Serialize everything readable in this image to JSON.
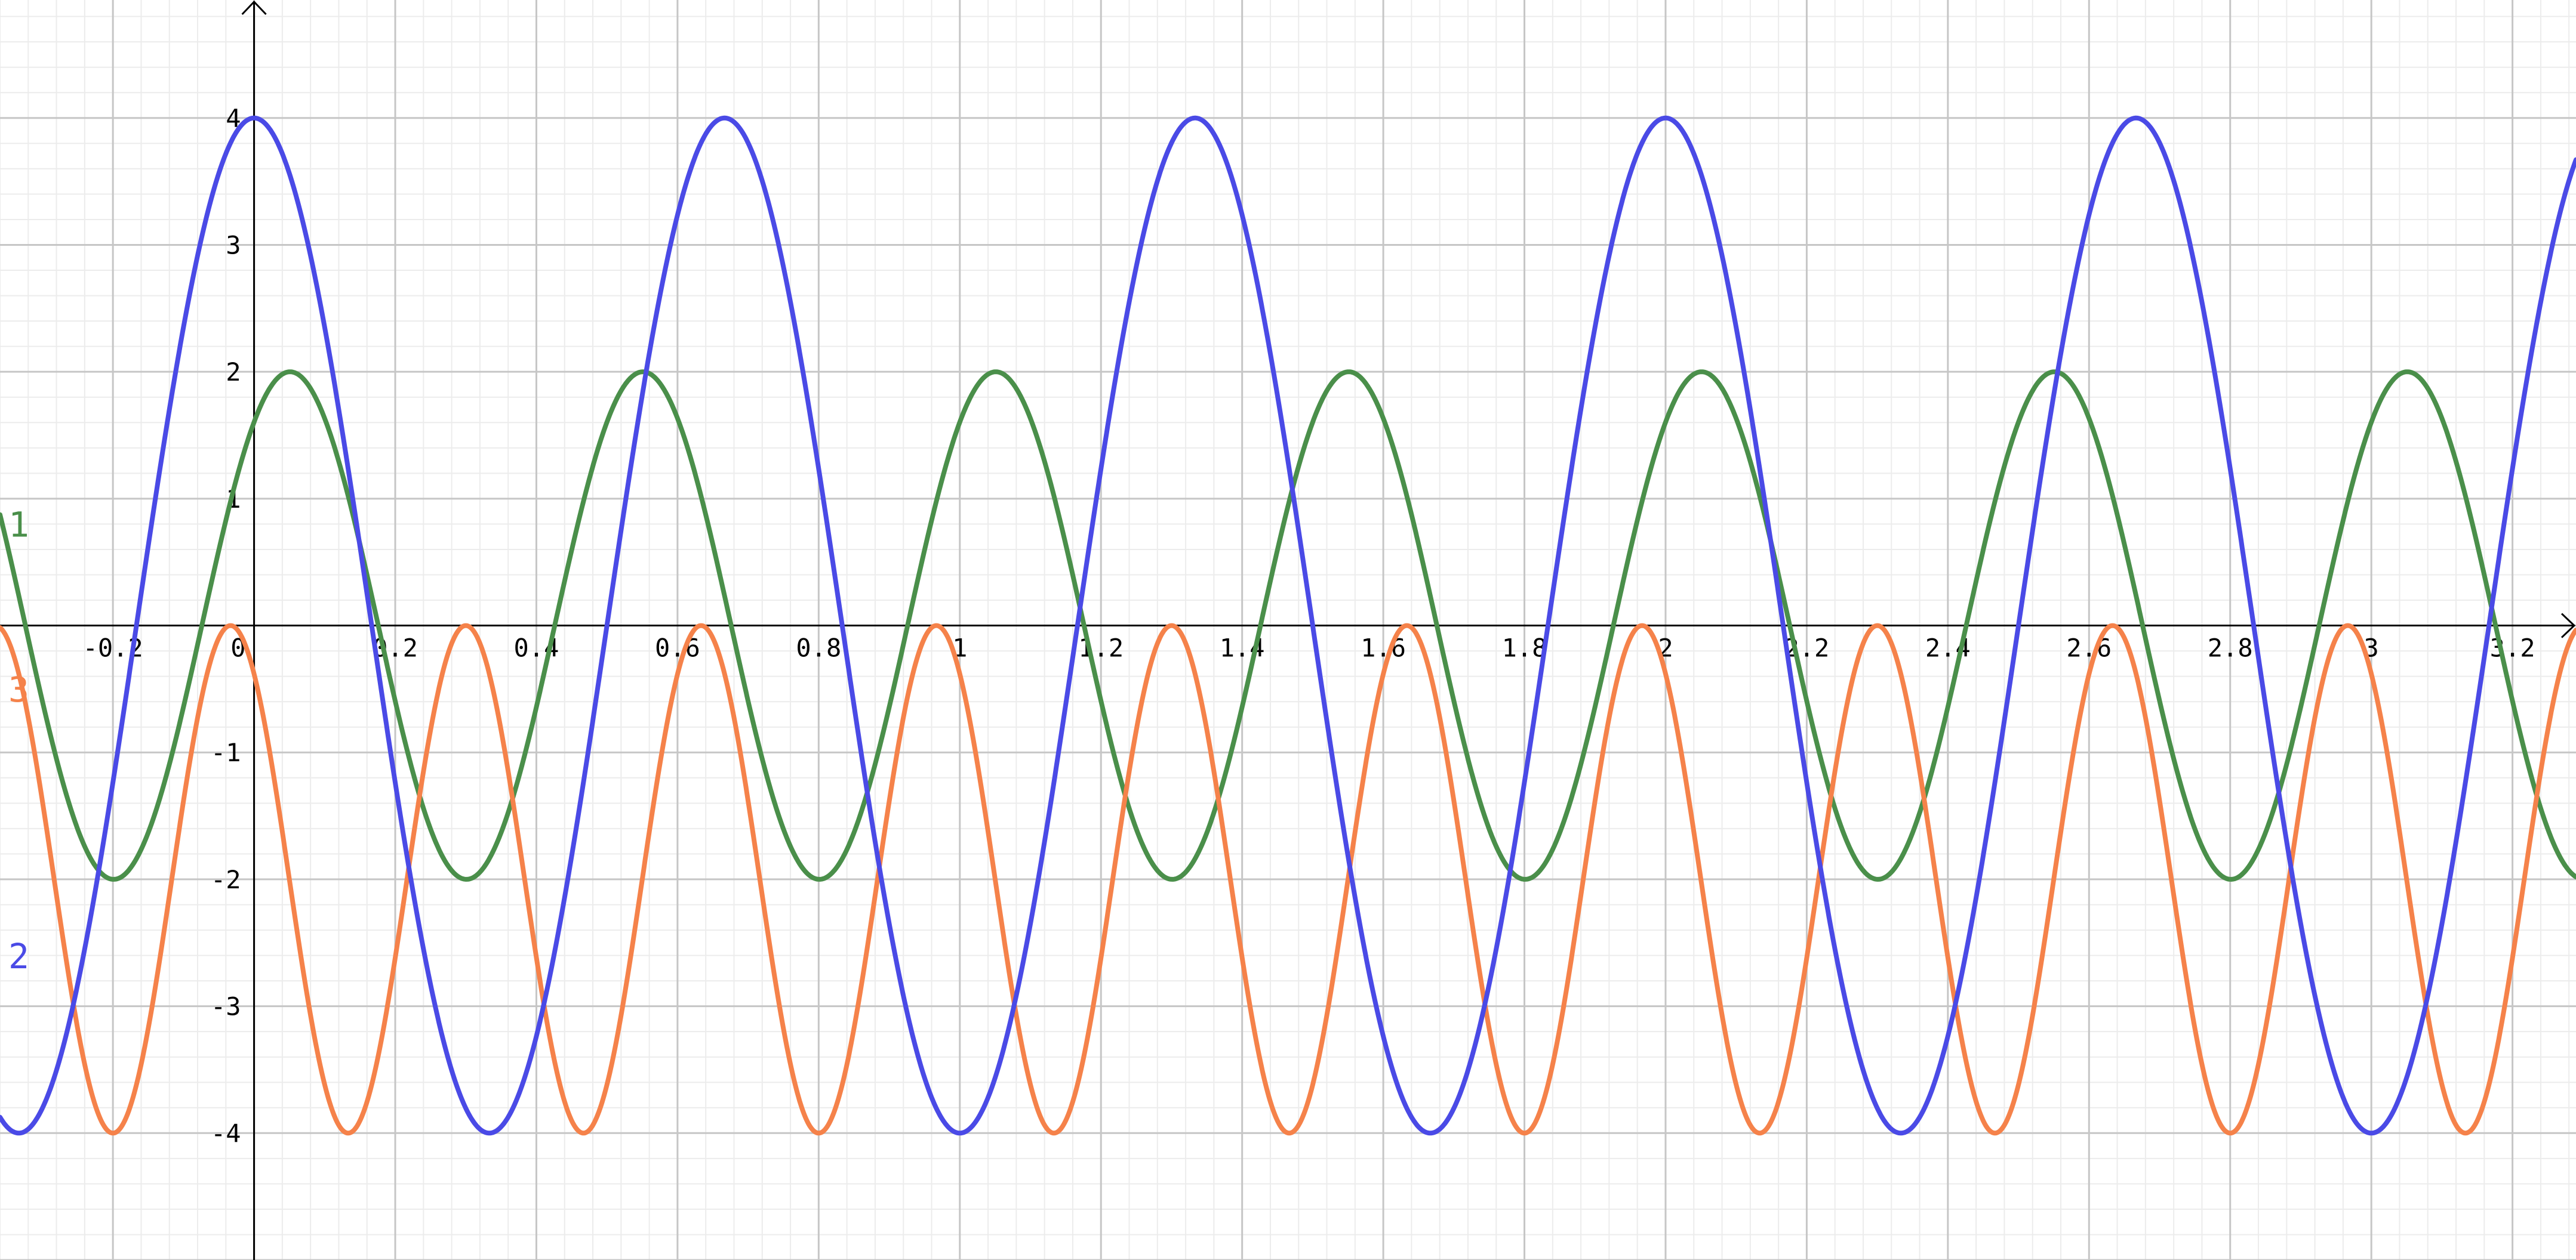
{
  "chart_data": {
    "type": "line",
    "title": "",
    "xlabel": "",
    "ylabel": "",
    "xlim": [
      -0.36,
      3.29
    ],
    "ylim": [
      -5.0,
      4.93
    ],
    "grid": true,
    "minor_grid": true,
    "x_tick_labels": [
      "-0.2",
      "0",
      "0.2",
      "0.4",
      "0.6",
      "0.8",
      "1",
      "1.2",
      "1.4",
      "1.6",
      "1.8",
      "2",
      "2.2",
      "2.4",
      "2.6",
      "2.8",
      "3",
      "3.2"
    ],
    "y_tick_labels": [
      "4",
      "3",
      "2",
      "1",
      "-1",
      "-2",
      "-3",
      "-4"
    ],
    "series": [
      {
        "name": "1",
        "color": "#4a8f4a",
        "function": "2*sin(2*pi*x/0.5 + 0.93)",
        "amplitude": 2,
        "period": 0.5,
        "offset": 0,
        "maxima_x": [
          0.05,
          0.55,
          1.05,
          1.55,
          2.05,
          2.55,
          3.05
        ],
        "minima_x": [
          -0.2,
          0.3,
          0.8,
          1.3,
          1.8,
          2.3,
          2.8
        ],
        "label_pos": {
          "x": -0.33,
          "y": 0.7
        }
      },
      {
        "name": "2",
        "color": "#4a4ae6",
        "function": "4*cos(2*pi*x/(2/3))",
        "amplitude": 4,
        "period": 0.6667,
        "offset": 0,
        "maxima_x": [
          0.0,
          0.667,
          1.333,
          2.0,
          2.667
        ],
        "minima_x": [
          -0.333,
          0.333,
          1.0,
          1.667,
          2.333,
          3.0
        ],
        "label_pos": {
          "x": -0.33,
          "y": -2.7
        }
      },
      {
        "name": "3",
        "color": "#f5824a",
        "function": "2*cos(2*pi*(x+0.033)/0.333) - 2",
        "amplitude": 2,
        "period": 0.3333,
        "offset": -2,
        "maxima_x": [
          -0.033,
          0.3,
          0.633,
          0.967,
          1.3,
          1.633,
          1.967,
          2.3,
          2.633,
          2.967
        ],
        "minima_x": [
          -0.2,
          0.133,
          0.467,
          0.8,
          1.133,
          1.467,
          1.8,
          2.133,
          2.467,
          2.8,
          3.133
        ],
        "label_pos": {
          "x": -0.33,
          "y": -0.6
        }
      }
    ]
  }
}
